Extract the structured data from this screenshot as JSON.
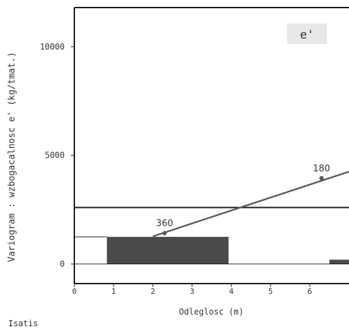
{
  "chart_data": {
    "type": "line",
    "badge": "e'",
    "ylabel": "Variogram : wzbogacalnosc e' (kg/tmat.)",
    "xlabel": "Odleglosc (m)",
    "footer": "Isatis",
    "xlim": [
      0,
      7
    ],
    "ylim": [
      -900,
      11800
    ],
    "x_ticks": [
      0,
      1,
      2,
      3,
      4,
      5,
      6
    ],
    "y_ticks": [
      0,
      5000,
      10000
    ],
    "grid": false,
    "histogram_bars": [
      {
        "x0": 0.83,
        "x1": 3.93,
        "height": 1250
      },
      {
        "x0": 6.5,
        "x1": 7.0,
        "height": 200
      }
    ],
    "reference_line": {
      "y": 2600
    },
    "model_line": {
      "x": [
        2.0,
        7.0
      ],
      "y": [
        1270,
        4250
      ]
    },
    "experimental_points": [
      {
        "x": 2.3,
        "y": 1420,
        "label": "360"
      },
      {
        "x": 6.3,
        "y": 3950,
        "label": "180"
      }
    ],
    "colors": {
      "axes": "#1a1a1a",
      "bars": "#4a4a4a",
      "model": "#5a5a5a",
      "text": "#333333",
      "badge_bg": "#e8e8e8"
    }
  }
}
